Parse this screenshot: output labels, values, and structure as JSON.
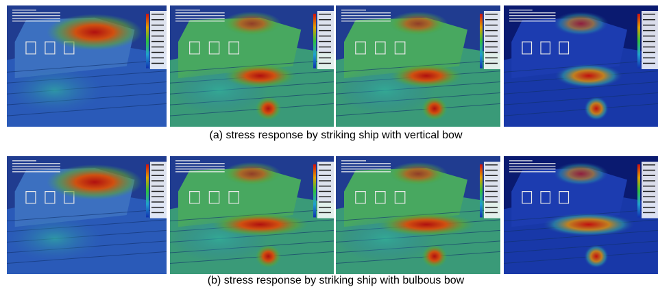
{
  "figure": {
    "captions": [
      "(a) stress response by striking ship with vertical bow",
      "(b) stress response by striking ship with bulbous bow"
    ]
  }
}
